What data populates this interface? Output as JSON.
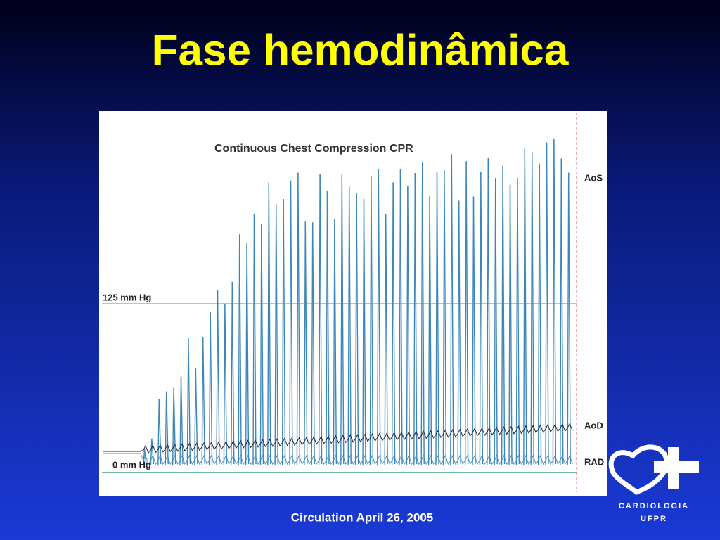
{
  "slide": {
    "title": "Fase hemodinâmica",
    "caption": "Circulation April 26, 2005"
  },
  "figure": {
    "title": "Continuous Chest Compression CPR",
    "upper_reference": "125 mm Hg",
    "lower_reference": "0  mm Hg",
    "traces": [
      "AoS",
      "AoD",
      "RAD"
    ]
  },
  "logo": {
    "name": "CARDIOLOGIA",
    "sub": "UFPR"
  }
}
